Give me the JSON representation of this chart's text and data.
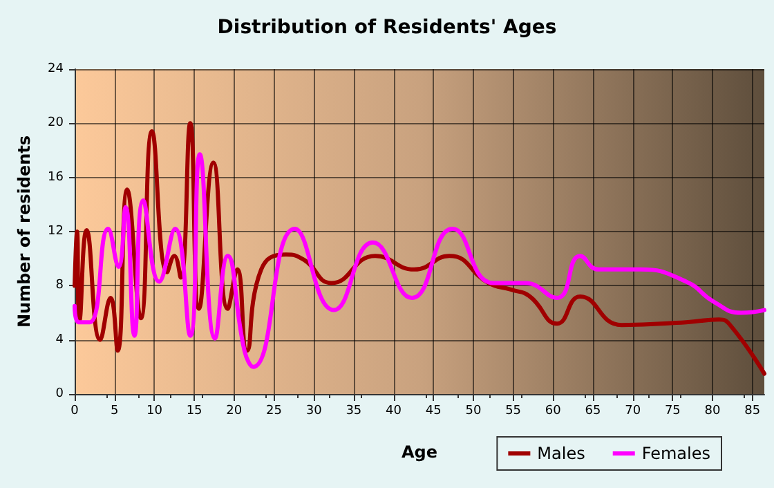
{
  "chart_data": {
    "type": "line",
    "title": "Distribution of Residents' Ages",
    "xlabel": "Age",
    "ylabel": "Number of residents",
    "xlim": [
      0,
      86.5
    ],
    "xticks": [
      0,
      5,
      10,
      15,
      20,
      25,
      30,
      35,
      40,
      45,
      50,
      55,
      60,
      65,
      70,
      75,
      80,
      85
    ],
    "ylim": [
      0,
      24
    ],
    "yticks": [
      0,
      4,
      8,
      12,
      16,
      20,
      24
    ],
    "grid": true,
    "legend": "bottom right",
    "marker": "none",
    "line_style": "solid",
    "series": [
      {
        "name": "Males",
        "color": "#a00000",
        "x": [
          0,
          0.3,
          0.6,
          1.5,
          3.2,
          4.5,
          5.4,
          6.6,
          8.3,
          9.7,
          11.6,
          12.5,
          13.3,
          14.5,
          15.6,
          17.4,
          19.2,
          20.4,
          21.6,
          23.4,
          26.5,
          28.8,
          32.2,
          37.7,
          42.6,
          47,
          51.9,
          54.8,
          57.1,
          60.5,
          63.4,
          68.6,
          76.7,
          80.8,
          82.2,
          86.5
        ],
        "values": [
          8,
          12,
          5.4,
          12.1,
          4,
          7.1,
          3.2,
          15.1,
          5.6,
          19.4,
          9,
          10.2,
          8.6,
          20,
          6.3,
          17.1,
          6.3,
          9.2,
          3.2,
          9.2,
          10.3,
          9.9,
          8.2,
          10.2,
          9.2,
          10.2,
          8.2,
          7.7,
          7.2,
          5.2,
          7.2,
          5.1,
          5.3,
          5.5,
          5.1,
          1.5
        ]
      },
      {
        "name": "Females",
        "color": "#ff00ff",
        "x": [
          0,
          0.5,
          1.9,
          4.2,
          5.5,
          6.4,
          7.5,
          8.6,
          10.6,
          12.6,
          14.5,
          15.7,
          17.6,
          19.2,
          21.3,
          22.4,
          27.6,
          32.5,
          37.4,
          42.3,
          47.4,
          52.5,
          56.5,
          60.5,
          63.4,
          65.7,
          70.9,
          76.7,
          80.2,
          83.6,
          86.5
        ],
        "values": [
          6.5,
          5.3,
          5.3,
          12.2,
          9.4,
          13.8,
          4.3,
          14.3,
          8.3,
          12.2,
          4.3,
          17.7,
          4.1,
          10.2,
          3.2,
          2,
          12.2,
          6.2,
          11.2,
          7.1,
          12.2,
          8.2,
          8.2,
          7.1,
          10.2,
          9.2,
          9.2,
          8.3,
          6.8,
          6,
          6.2
        ]
      }
    ]
  }
}
